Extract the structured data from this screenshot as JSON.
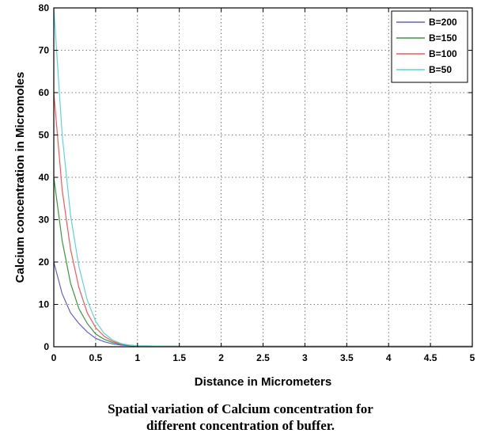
{
  "chart_data": {
    "type": "line",
    "xlabel": "Distance in Micrometers",
    "ylabel": "Calcium concentration in Micromoles",
    "xlim": [
      0,
      5
    ],
    "ylim": [
      0,
      80
    ],
    "xticks": [
      0,
      0.5,
      1,
      1.5,
      2,
      2.5,
      3,
      3.5,
      4,
      4.5,
      5
    ],
    "xtick_labels": [
      "0",
      "0.5",
      "1",
      "1.5",
      "2",
      "2.5",
      "3",
      "3.5",
      "4",
      "4.5",
      "5"
    ],
    "yticks": [
      0,
      10,
      20,
      30,
      40,
      50,
      60,
      70,
      80
    ],
    "ytick_labels": [
      "0",
      "10",
      "20",
      "30",
      "40",
      "50",
      "60",
      "70",
      "80"
    ],
    "grid": true,
    "legend_position": "top-right",
    "series": [
      {
        "name": "B=200",
        "color": "#6060d8",
        "x": [
          0,
          0.1,
          0.2,
          0.3,
          0.4,
          0.5,
          0.6,
          0.7,
          0.8,
          0.9,
          1.0,
          1.5,
          2,
          3,
          4,
          5
        ],
        "values": [
          20,
          12.5,
          8,
          5.5,
          3.5,
          2,
          1.2,
          0.7,
          0.4,
          0.25,
          0.15,
          0.1,
          0.1,
          0.1,
          0.1,
          0.1
        ]
      },
      {
        "name": "B=150",
        "color": "#3a9a3a",
        "x": [
          0,
          0.1,
          0.2,
          0.3,
          0.4,
          0.5,
          0.6,
          0.7,
          0.8,
          0.9,
          1.0,
          1.5,
          2,
          3,
          4,
          5
        ],
        "values": [
          40,
          25,
          15,
          9,
          5.5,
          3,
          1.8,
          1,
          0.6,
          0.3,
          0.2,
          0.1,
          0.1,
          0.1,
          0.1,
          0.1
        ]
      },
      {
        "name": "B=100",
        "color": "#ff5555",
        "x": [
          0,
          0.1,
          0.2,
          0.3,
          0.4,
          0.5,
          0.6,
          0.7,
          0.8,
          0.9,
          1.0,
          1.5,
          2,
          3,
          4,
          5
        ],
        "values": [
          60,
          37,
          23,
          14,
          8,
          4.5,
          2.5,
          1.3,
          0.7,
          0.4,
          0.2,
          0.1,
          0.1,
          0.1,
          0.1,
          0.1
        ]
      },
      {
        "name": "B=50",
        "color": "#5cd6d6",
        "x": [
          0,
          0.1,
          0.2,
          0.3,
          0.4,
          0.5,
          0.6,
          0.7,
          0.8,
          0.9,
          1.0,
          1.5,
          2,
          3,
          4,
          5
        ],
        "values": [
          80,
          50,
          31,
          19,
          11,
          6,
          3.2,
          1.6,
          0.8,
          0.4,
          0.2,
          0.1,
          0.1,
          0.1,
          0.1,
          0.1
        ]
      }
    ]
  },
  "caption": {
    "line1": "Spatial variation of Calcium concentration for",
    "line2": "different concentration of buffer."
  }
}
